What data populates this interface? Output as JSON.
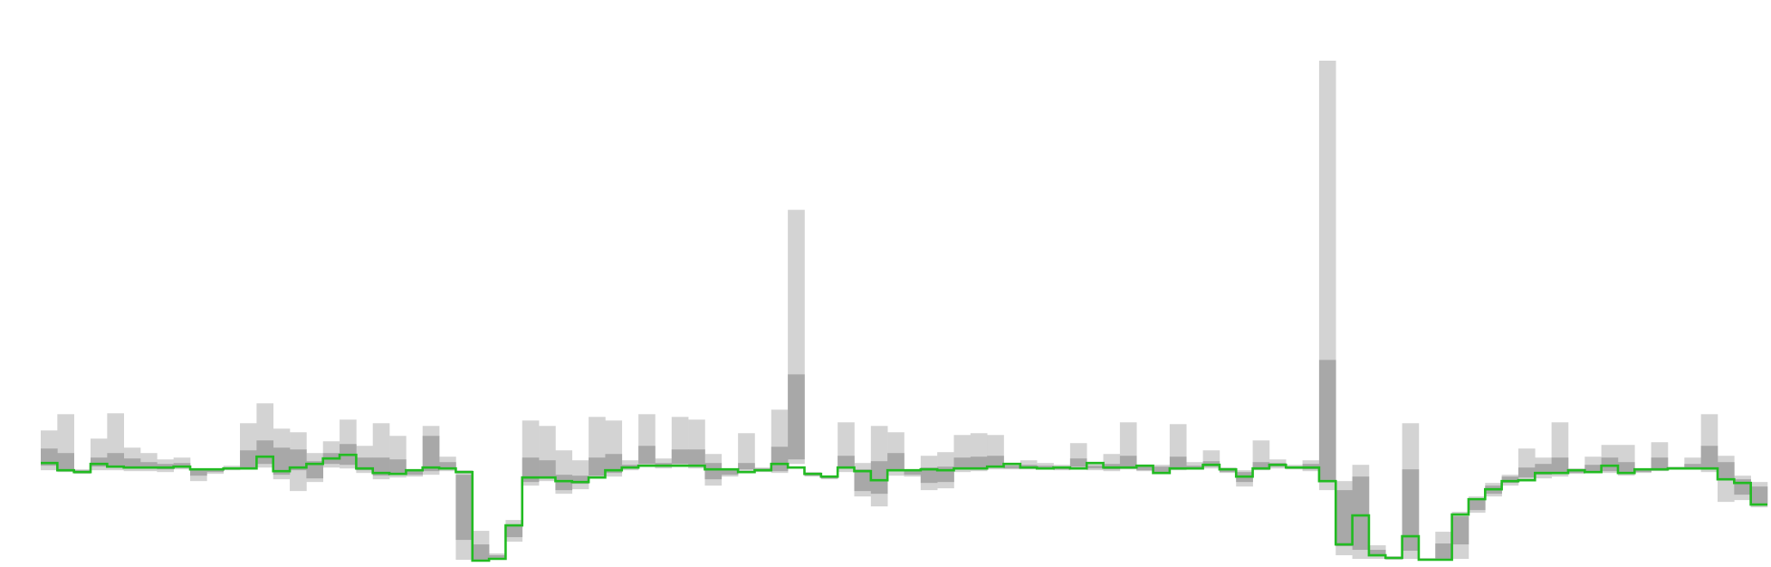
{
  "chart_data": {
    "type": "area",
    "title": "",
    "xlabel": "",
    "ylabel": "",
    "axes_visible": false,
    "grid": false,
    "legend": "none",
    "colors": {
      "outer_band": "#d3d3d3",
      "inner_band": "#a8a8a8",
      "median_line": "#22bb22",
      "background": "#ffffff"
    },
    "bins": [
      {
        "x": 0,
        "upper": 4.1,
        "inner_upper": 2.1,
        "inner_lower": 0.2,
        "lower": -0.3,
        "median": 0.5
      },
      {
        "x": 1,
        "upper": 5.9,
        "inner_upper": 1.6,
        "inner_lower": -0.2,
        "lower": -0.5,
        "median": -0.3
      },
      {
        "x": 2,
        "upper": -0.2,
        "inner_upper": -0.3,
        "inner_lower": -0.6,
        "lower": -0.7,
        "median": -0.5
      },
      {
        "x": 3,
        "upper": 3.2,
        "inner_upper": 1.1,
        "inner_lower": 0.1,
        "lower": -0.3,
        "median": 0.4
      },
      {
        "x": 4,
        "upper": 6.0,
        "inner_upper": 1.6,
        "inner_lower": 0.1,
        "lower": -0.3,
        "median": 0.1
      },
      {
        "x": 5,
        "upper": 2.2,
        "inner_upper": 1.0,
        "inner_lower": -0.1,
        "lower": -0.4,
        "median": 0.0
      },
      {
        "x": 6,
        "upper": 1.6,
        "inner_upper": 0.6,
        "inner_lower": -0.1,
        "lower": -0.4,
        "median": 0.0
      },
      {
        "x": 7,
        "upper": 0.9,
        "inner_upper": 0.4,
        "inner_lower": -0.2,
        "lower": -0.5,
        "median": 0.0
      },
      {
        "x": 8,
        "upper": 1.1,
        "inner_upper": 0.5,
        "inner_lower": 0.0,
        "lower": -0.2,
        "median": 0.1
      },
      {
        "x": 9,
        "upper": -0.1,
        "inner_upper": -0.2,
        "inner_lower": -0.9,
        "lower": -1.5,
        "median": -0.2
      },
      {
        "x": 10,
        "upper": -0.1,
        "inner_upper": -0.2,
        "inner_lower": -0.5,
        "lower": -0.7,
        "median": -0.2
      },
      {
        "x": 11,
        "upper": 0.2,
        "inner_upper": 0.0,
        "inner_lower": -0.2,
        "lower": -0.3,
        "median": -0.1
      },
      {
        "x": 12,
        "upper": 4.9,
        "inner_upper": 1.9,
        "inner_lower": 0.0,
        "lower": -0.2,
        "median": -0.1
      },
      {
        "x": 13,
        "upper": 7.1,
        "inner_upper": 3.0,
        "inner_lower": 0.4,
        "lower": 0.0,
        "median": 1.2
      },
      {
        "x": 14,
        "upper": 4.3,
        "inner_upper": 2.2,
        "inner_lower": -0.8,
        "lower": -1.3,
        "median": -0.4
      },
      {
        "x": 15,
        "upper": 3.9,
        "inner_upper": 2.0,
        "inner_lower": -0.3,
        "lower": -2.6,
        "median": 0.0
      },
      {
        "x": 16,
        "upper": 1.6,
        "inner_upper": 0.7,
        "inner_lower": -1.2,
        "lower": -1.6,
        "median": 0.4
      },
      {
        "x": 17,
        "upper": 2.9,
        "inner_upper": 1.6,
        "inner_lower": 0.4,
        "lower": 0.0,
        "median": 1.0
      },
      {
        "x": 18,
        "upper": 5.3,
        "inner_upper": 2.6,
        "inner_lower": 0.3,
        "lower": -0.1,
        "median": 1.4
      },
      {
        "x": 19,
        "upper": 2.4,
        "inner_upper": 1.1,
        "inner_lower": -0.3,
        "lower": -0.6,
        "median": -0.1
      },
      {
        "x": 20,
        "upper": 4.9,
        "inner_upper": 1.1,
        "inner_lower": -0.9,
        "lower": -1.3,
        "median": -0.6
      },
      {
        "x": 21,
        "upper": 3.5,
        "inner_upper": 0.9,
        "inner_lower": -0.8,
        "lower": -1.1,
        "median": -0.7
      },
      {
        "x": 22,
        "upper": -0.2,
        "inner_upper": -0.3,
        "inner_lower": -0.8,
        "lower": -1.0,
        "median": -0.3
      },
      {
        "x": 23,
        "upper": 4.6,
        "inner_upper": 3.5,
        "inner_lower": -0.4,
        "lower": -0.8,
        "median": 0.0
      },
      {
        "x": 24,
        "upper": 1.2,
        "inner_upper": 0.6,
        "inner_lower": -0.2,
        "lower": -0.4,
        "median": -0.1
      },
      {
        "x": 25,
        "upper": -0.3,
        "inner_upper": -0.8,
        "inner_lower": -8.0,
        "lower": -10.2,
        "median": -0.5
      },
      {
        "x": 26,
        "upper": -7.0,
        "inner_upper": -8.5,
        "inner_lower": -10.2,
        "lower": -10.4,
        "median": -10.3
      },
      {
        "x": 27,
        "upper": -9.5,
        "inner_upper": -9.7,
        "inner_lower": -10.1,
        "lower": -10.2,
        "median": -10.1
      },
      {
        "x": 28,
        "upper": -5.8,
        "inner_upper": -6.4,
        "inner_lower": -7.7,
        "lower": -8.2,
        "median": -6.4
      },
      {
        "x": 29,
        "upper": 5.2,
        "inner_upper": 1.1,
        "inner_lower": -1.6,
        "lower": -2.0,
        "median": -1.1
      },
      {
        "x": 30,
        "upper": 4.6,
        "inner_upper": 0.8,
        "inner_lower": -1.0,
        "lower": -1.5,
        "median": -1.1
      },
      {
        "x": 31,
        "upper": 1.9,
        "inner_upper": -0.8,
        "inner_lower": -2.5,
        "lower": -2.9,
        "median": -1.5
      },
      {
        "x": 32,
        "upper": 0.8,
        "inner_upper": -0.9,
        "inner_lower": -1.8,
        "lower": -2.4,
        "median": -1.6
      },
      {
        "x": 33,
        "upper": 5.6,
        "inner_upper": 1.1,
        "inner_lower": -0.9,
        "lower": -1.2,
        "median": -1.1
      },
      {
        "x": 34,
        "upper": 5.2,
        "inner_upper": 1.5,
        "inner_lower": -0.6,
        "lower": -1.0,
        "median": -0.3
      },
      {
        "x": 35,
        "upper": 0.8,
        "inner_upper": 0.3,
        "inner_lower": -0.1,
        "lower": -0.3,
        "median": 0.0
      },
      {
        "x": 36,
        "upper": 5.9,
        "inner_upper": 2.4,
        "inner_lower": 0.4,
        "lower": 0.1,
        "median": 0.2
      },
      {
        "x": 37,
        "upper": 1.0,
        "inner_upper": 0.5,
        "inner_lower": 0.1,
        "lower": -0.1,
        "median": 0.2
      },
      {
        "x": 38,
        "upper": 5.6,
        "inner_upper": 2.0,
        "inner_lower": 0.4,
        "lower": 0.2,
        "median": 0.2
      },
      {
        "x": 39,
        "upper": 5.3,
        "inner_upper": 2.0,
        "inner_lower": 0.1,
        "lower": -0.1,
        "median": 0.2
      },
      {
        "x": 40,
        "upper": 1.5,
        "inner_upper": 0.5,
        "inner_lower": -1.3,
        "lower": -2.0,
        "median": -0.2
      },
      {
        "x": 41,
        "upper": -0.1,
        "inner_upper": -0.3,
        "inner_lower": -0.8,
        "lower": -1.0,
        "median": -0.2
      },
      {
        "x": 42,
        "upper": 3.8,
        "inner_upper": 0.5,
        "inner_lower": -0.2,
        "lower": -0.5,
        "median": -0.5
      },
      {
        "x": 43,
        "upper": 0.0,
        "inner_upper": -0.1,
        "inner_lower": -0.4,
        "lower": -0.5,
        "median": -0.3
      },
      {
        "x": 44,
        "upper": 6.4,
        "inner_upper": 2.3,
        "inner_lower": -0.4,
        "lower": -0.6,
        "median": 0.4
      },
      {
        "x": 45,
        "upper": 28.5,
        "inner_upper": 10.3,
        "inner_lower": 0.9,
        "lower": 0.4,
        "median": 0.0
      },
      {
        "x": 46,
        "upper": -0.5,
        "inner_upper": -0.6,
        "inner_lower": -0.9,
        "lower": -1.0,
        "median": -0.7
      },
      {
        "x": 47,
        "upper": -0.9,
        "inner_upper": -1.0,
        "inner_lower": -1.2,
        "lower": -1.3,
        "median": -1.0
      },
      {
        "x": 48,
        "upper": 5.0,
        "inner_upper": 1.3,
        "inner_lower": -0.1,
        "lower": -0.5,
        "median": 0.0
      },
      {
        "x": 49,
        "upper": 0.5,
        "inner_upper": -0.2,
        "inner_lower": -2.6,
        "lower": -3.2,
        "median": -0.4
      },
      {
        "x": 50,
        "upper": 4.6,
        "inner_upper": 0.7,
        "inner_lower": -2.9,
        "lower": -4.3,
        "median": -1.4
      },
      {
        "x": 51,
        "upper": 3.9,
        "inner_upper": 1.6,
        "inner_lower": -0.3,
        "lower": -0.9,
        "median": -0.3
      },
      {
        "x": 52,
        "upper": -0.3,
        "inner_upper": -0.4,
        "inner_lower": -0.8,
        "lower": -1.0,
        "median": -0.3
      },
      {
        "x": 53,
        "upper": 1.3,
        "inner_upper": 0.0,
        "inner_lower": -1.7,
        "lower": -2.5,
        "median": -0.2
      },
      {
        "x": 54,
        "upper": 1.7,
        "inner_upper": 0.1,
        "inner_lower": -1.6,
        "lower": -2.3,
        "median": -0.3
      },
      {
        "x": 55,
        "upper": 3.6,
        "inner_upper": 1.1,
        "inner_lower": 0.0,
        "lower": -0.5,
        "median": -0.1
      },
      {
        "x": 56,
        "upper": 3.8,
        "inner_upper": 1.2,
        "inner_lower": 0.0,
        "lower": -0.4,
        "median": -0.1
      },
      {
        "x": 57,
        "upper": 3.6,
        "inner_upper": 1.3,
        "inner_lower": 0.1,
        "lower": -0.2,
        "median": 0.1
      },
      {
        "x": 58,
        "upper": 0.4,
        "inner_upper": 0.2,
        "inner_lower": -0.1,
        "lower": -0.2,
        "median": 0.4
      },
      {
        "x": 59,
        "upper": 0.8,
        "inner_upper": 0.3,
        "inner_lower": 0.0,
        "lower": -0.2,
        "median": 0.0
      },
      {
        "x": 60,
        "upper": 0.5,
        "inner_upper": 0.2,
        "inner_lower": -0.1,
        "lower": -0.2,
        "median": -0.1
      },
      {
        "x": 61,
        "upper": 0.3,
        "inner_upper": 0.1,
        "inner_lower": -0.2,
        "lower": -0.3,
        "median": 0.0
      },
      {
        "x": 62,
        "upper": 2.7,
        "inner_upper": 1.0,
        "inner_lower": 0.1,
        "lower": -0.2,
        "median": -0.1
      },
      {
        "x": 63,
        "upper": 0.6,
        "inner_upper": 0.2,
        "inner_lower": -0.1,
        "lower": -0.3,
        "median": 0.5
      },
      {
        "x": 64,
        "upper": 1.5,
        "inner_upper": 0.4,
        "inner_lower": -0.2,
        "lower": -0.4,
        "median": 0.0
      },
      {
        "x": 65,
        "upper": 5.0,
        "inner_upper": 1.3,
        "inner_lower": 0.0,
        "lower": -0.2,
        "median": 0.0
      },
      {
        "x": 66,
        "upper": 0.3,
        "inner_upper": 0.1,
        "inner_lower": -0.3,
        "lower": -0.4,
        "median": 0.2
      },
      {
        "x": 67,
        "upper": 0.3,
        "inner_upper": 0.1,
        "inner_lower": -0.5,
        "lower": -0.7,
        "median": -0.6
      },
      {
        "x": 68,
        "upper": 4.8,
        "inner_upper": 1.2,
        "inner_lower": -0.1,
        "lower": -0.3,
        "median": -0.1
      },
      {
        "x": 69,
        "upper": 0.6,
        "inner_upper": 0.2,
        "inner_lower": -0.1,
        "lower": -0.2,
        "median": -0.1
      },
      {
        "x": 70,
        "upper": 1.9,
        "inner_upper": 0.7,
        "inner_lower": 0.1,
        "lower": -0.1,
        "median": 0.3
      },
      {
        "x": 71,
        "upper": 0.0,
        "inner_upper": -0.1,
        "inner_lower": -0.5,
        "lower": -0.6,
        "median": -0.2
      },
      {
        "x": 72,
        "upper": -0.3,
        "inner_upper": -0.5,
        "inner_lower": -1.6,
        "lower": -2.1,
        "median": -1.0
      },
      {
        "x": 73,
        "upper": 3.0,
        "inner_upper": 0.6,
        "inner_lower": -0.1,
        "lower": -0.3,
        "median": -0.1
      },
      {
        "x": 74,
        "upper": 0.9,
        "inner_upper": 0.5,
        "inner_lower": 0.1,
        "lower": -0.1,
        "median": 0.3
      },
      {
        "x": 75,
        "upper": 0.3,
        "inner_upper": 0.1,
        "inner_lower": -0.1,
        "lower": -0.2,
        "median": 0.0
      },
      {
        "x": 76,
        "upper": 0.8,
        "inner_upper": 0.4,
        "inner_lower": -0.2,
        "lower": -0.4,
        "median": 0.0
      },
      {
        "x": 77,
        "upper": 45.0,
        "inner_upper": 11.9,
        "inner_lower": -1.5,
        "lower": -2.5,
        "median": -1.5
      },
      {
        "x": 78,
        "upper": -1.5,
        "inner_upper": -2.5,
        "inner_lower": -8.7,
        "lower": -9.7,
        "median": -8.5
      },
      {
        "x": 79,
        "upper": 0.3,
        "inner_upper": -1.0,
        "inner_lower": -9.1,
        "lower": -10.1,
        "median": -5.3
      },
      {
        "x": 80,
        "upper": -8.6,
        "inner_upper": -9.1,
        "inner_lower": -9.8,
        "lower": -10.1,
        "median": -9.7
      },
      {
        "x": 81,
        "upper": -9.8,
        "inner_upper": -9.9,
        "inner_lower": -10.1,
        "lower": -10.2,
        "median": -10.0
      },
      {
        "x": 82,
        "upper": 4.9,
        "inner_upper": -0.2,
        "inner_lower": -9.2,
        "lower": -10.1,
        "median": -7.6
      },
      {
        "x": 83,
        "upper": -10.0,
        "inner_upper": -10.1,
        "inner_lower": -10.2,
        "lower": -10.3,
        "median": -10.2
      },
      {
        "x": 84,
        "upper": -7.1,
        "inner_upper": -8.4,
        "inner_lower": -10.1,
        "lower": -10.3,
        "median": -10.2
      },
      {
        "x": 85,
        "upper": -4.9,
        "inner_upper": -5.4,
        "inner_lower": -8.5,
        "lower": -10.1,
        "median": -5.2
      },
      {
        "x": 86,
        "upper": -3.2,
        "inner_upper": -3.6,
        "inner_lower": -4.7,
        "lower": -5.0,
        "median": -3.5
      },
      {
        "x": 87,
        "upper": -1.7,
        "inner_upper": -2.0,
        "inner_lower": -2.9,
        "lower": -3.2,
        "median": -2.4
      },
      {
        "x": 88,
        "upper": -0.8,
        "inner_upper": -1.0,
        "inner_lower": -1.7,
        "lower": -2.0,
        "median": -1.5
      },
      {
        "x": 89,
        "upper": 2.1,
        "inner_upper": 0.0,
        "inner_lower": -1.1,
        "lower": -1.5,
        "median": -1.4
      },
      {
        "x": 90,
        "upper": 1.1,
        "inner_upper": 0.4,
        "inner_lower": -0.8,
        "lower": -1.2,
        "median": -0.6
      },
      {
        "x": 91,
        "upper": 5.0,
        "inner_upper": 1.1,
        "inner_lower": -0.6,
        "lower": -1.0,
        "median": -0.6
      },
      {
        "x": 92,
        "upper": -0.1,
        "inner_upper": -0.2,
        "inner_lower": -0.6,
        "lower": -0.7,
        "median": -0.3
      },
      {
        "x": 93,
        "upper": 1.2,
        "inner_upper": 0.3,
        "inner_lower": -0.4,
        "lower": -0.6,
        "median": -0.5
      },
      {
        "x": 94,
        "upper": 2.5,
        "inner_upper": 1.1,
        "inner_lower": -0.4,
        "lower": -0.6,
        "median": 0.2
      },
      {
        "x": 95,
        "upper": 2.5,
        "inner_upper": 0.6,
        "inner_lower": -0.6,
        "lower": -0.9,
        "median": -0.6
      },
      {
        "x": 96,
        "upper": -0.1,
        "inner_upper": -0.2,
        "inner_lower": -0.5,
        "lower": -0.6,
        "median": -0.2
      },
      {
        "x": 97,
        "upper": 2.8,
        "inner_upper": 1.1,
        "inner_lower": -0.1,
        "lower": -0.4,
        "median": -0.2
      },
      {
        "x": 98,
        "upper": 0.1,
        "inner_upper": 0.0,
        "inner_lower": -0.1,
        "lower": -0.2,
        "median": -0.1
      },
      {
        "x": 99,
        "upper": 1.1,
        "inner_upper": 0.4,
        "inner_lower": 0.0,
        "lower": -0.2,
        "median": -0.1
      },
      {
        "x": 100,
        "upper": 5.9,
        "inner_upper": 2.4,
        "inner_lower": -0.2,
        "lower": -0.5,
        "median": -0.1
      },
      {
        "x": 101,
        "upper": 1.3,
        "inner_upper": 0.6,
        "inner_lower": -1.3,
        "lower": -3.8,
        "median": -1.3
      },
      {
        "x": 102,
        "upper": -0.9,
        "inner_upper": -1.3,
        "inner_lower": -3.0,
        "lower": -3.6,
        "median": -1.7
      },
      {
        "x": 103,
        "upper": -1.6,
        "inner_upper": -2.1,
        "inner_lower": -4.2,
        "lower": -4.4,
        "median": -4.1
      }
    ],
    "xlim": [
      0,
      104
    ],
    "ylim": [
      -10.6,
      47.1
    ]
  }
}
